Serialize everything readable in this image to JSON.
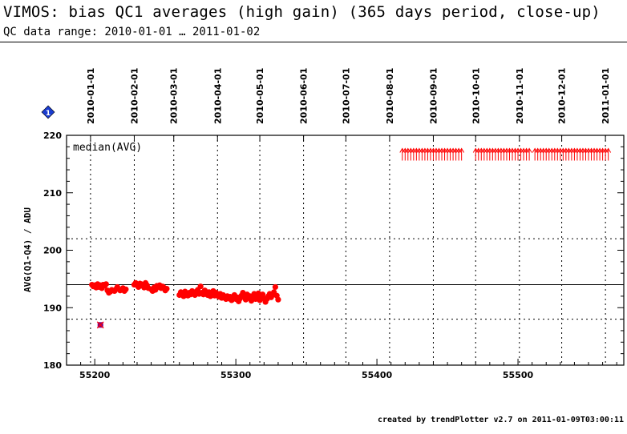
{
  "header": {
    "title": "VIMOS: bias QC1 averages (high gain) (365 days period, close-up)",
    "subtitle": "QC data range: 2010-01-01 … 2011-01-02"
  },
  "footer": {
    "credit": "created by trendPlotter v2.7 on 2011-01-09T03:00:11"
  },
  "colors": {
    "data": "#ff0000",
    "outlier_fill": "#800080",
    "outlier_edge": "#ff0000",
    "marker": "#1a3ccf",
    "grid": "#000000"
  },
  "chart_data": {
    "type": "scatter",
    "title": "",
    "annotation": "median(AVG)",
    "badge": "1",
    "xlabel": "",
    "ylabel": "AVG(Q1-Q4) / ADU",
    "xlim": [
      55180,
      55575
    ],
    "ylim": [
      180,
      220
    ],
    "x_ticks": [
      55200,
      55300,
      55400,
      55500
    ],
    "y_ticks": [
      180,
      190,
      200,
      210,
      220
    ],
    "top_axis_dates": [
      {
        "label": "2010-01-01",
        "mjd": 55197
      },
      {
        "label": "2010-02-01",
        "mjd": 55228
      },
      {
        "label": "2010-03-01",
        "mjd": 55256
      },
      {
        "label": "2010-04-01",
        "mjd": 55287
      },
      {
        "label": "2010-05-01",
        "mjd": 55317
      },
      {
        "label": "2010-06-01",
        "mjd": 55348
      },
      {
        "label": "2010-07-01",
        "mjd": 55378
      },
      {
        "label": "2010-08-01",
        "mjd": 55409
      },
      {
        "label": "2010-09-01",
        "mjd": 55440
      },
      {
        "label": "2010-10-01",
        "mjd": 55470
      },
      {
        "label": "2010-11-01",
        "mjd": 55501
      },
      {
        "label": "2010-12-01",
        "mjd": 55531
      },
      {
        "label": "2011-01-01",
        "mjd": 55562
      }
    ],
    "reference_lines": {
      "median": 194,
      "upper_limit": 202,
      "lower_limit": 188
    },
    "offscale_arrows": {
      "value": 217,
      "x": [
        55418,
        55420,
        55422,
        55424,
        55426,
        55428,
        55430,
        55432,
        55434,
        55436,
        55438,
        55440,
        55442,
        55444,
        55446,
        55448,
        55450,
        55452,
        55454,
        55456,
        55458,
        55460,
        55470,
        55472,
        55474,
        55476,
        55478,
        55480,
        55482,
        55484,
        55486,
        55488,
        55490,
        55492,
        55494,
        55496,
        55498,
        55500,
        55502,
        55504,
        55506,
        55508,
        55512,
        55514,
        55516,
        55518,
        55520,
        55522,
        55524,
        55526,
        55528,
        55530,
        55532,
        55534,
        55536,
        55538,
        55540,
        55542,
        55544,
        55546,
        55548,
        55550,
        55552,
        55554,
        55556,
        55558,
        55560,
        55562,
        55564
      ]
    },
    "outlier": {
      "x": 55204,
      "y": 187
    },
    "series": [
      {
        "points": [
          [
            55198,
            194.0
          ],
          [
            55199,
            193.7
          ],
          [
            55200,
            193.9
          ],
          [
            55201,
            193.5
          ],
          [
            55202,
            194.1
          ],
          [
            55203,
            193.6
          ],
          [
            55204,
            193.9
          ],
          [
            55205,
            193.4
          ],
          [
            55206,
            194.0
          ],
          [
            55207,
            193.8
          ],
          [
            55208,
            194.1
          ],
          [
            55209,
            193.0
          ],
          [
            55210,
            192.6
          ],
          [
            55211,
            192.8
          ],
          [
            55212,
            193.1
          ],
          [
            55214,
            192.9
          ],
          [
            55215,
            193.2
          ],
          [
            55216,
            193.6
          ],
          [
            55218,
            193.0
          ],
          [
            55220,
            193.4
          ],
          [
            55221,
            192.9
          ],
          [
            55222,
            193.2
          ],
          [
            55228,
            194.0
          ],
          [
            55229,
            194.3
          ],
          [
            55230,
            193.9
          ],
          [
            55231,
            193.6
          ],
          [
            55232,
            194.2
          ],
          [
            55233,
            194.1
          ],
          [
            55234,
            193.8
          ],
          [
            55235,
            193.5
          ],
          [
            55236,
            194.3
          ],
          [
            55237,
            193.9
          ],
          [
            55238,
            193.4
          ],
          [
            55240,
            193.2
          ],
          [
            55241,
            192.9
          ],
          [
            55242,
            193.5
          ],
          [
            55243,
            193.1
          ],
          [
            55244,
            193.8
          ],
          [
            55245,
            193.6
          ],
          [
            55246,
            193.9
          ],
          [
            55247,
            193.4
          ],
          [
            55248,
            193.7
          ],
          [
            55249,
            193.5
          ],
          [
            55250,
            193.0
          ],
          [
            55251,
            193.3
          ],
          [
            55260,
            192.2
          ],
          [
            55261,
            192.7
          ],
          [
            55262,
            192.5
          ],
          [
            55263,
            192.0
          ],
          [
            55264,
            192.8
          ],
          [
            55265,
            192.4
          ],
          [
            55266,
            192.1
          ],
          [
            55267,
            192.6
          ],
          [
            55268,
            192.3
          ],
          [
            55269,
            192.9
          ],
          [
            55270,
            192.5
          ],
          [
            55271,
            192.2
          ],
          [
            55272,
            192.8
          ],
          [
            55273,
            193.1
          ],
          [
            55274,
            192.4
          ],
          [
            55275,
            193.7
          ],
          [
            55276,
            192.6
          ],
          [
            55277,
            192.3
          ],
          [
            55278,
            193.0
          ],
          [
            55279,
            192.5
          ],
          [
            55280,
            192.2
          ],
          [
            55281,
            192.7
          ],
          [
            55282,
            192.0
          ],
          [
            55283,
            192.4
          ],
          [
            55284,
            192.9
          ],
          [
            55285,
            192.1
          ],
          [
            55286,
            192.6
          ],
          [
            55287,
            192.3
          ],
          [
            55288,
            191.9
          ],
          [
            55289,
            192.4
          ],
          [
            55290,
            191.7
          ],
          [
            55291,
            192.2
          ],
          [
            55292,
            191.8
          ],
          [
            55293,
            191.5
          ],
          [
            55294,
            192.0
          ],
          [
            55295,
            191.6
          ],
          [
            55296,
            191.9
          ],
          [
            55297,
            191.3
          ],
          [
            55298,
            191.7
          ],
          [
            55299,
            192.2
          ],
          [
            55300,
            191.5
          ],
          [
            55301,
            191.8
          ],
          [
            55302,
            191.1
          ],
          [
            55303,
            191.6
          ],
          [
            55304,
            192.1
          ],
          [
            55305,
            192.6
          ],
          [
            55306,
            191.9
          ],
          [
            55307,
            191.4
          ],
          [
            55308,
            192.3
          ],
          [
            55309,
            191.7
          ],
          [
            55310,
            192.0
          ],
          [
            55311,
            191.2
          ],
          [
            55312,
            191.8
          ],
          [
            55313,
            192.4
          ],
          [
            55314,
            191.5
          ],
          [
            55315,
            192.1
          ],
          [
            55316,
            192.5
          ],
          [
            55317,
            191.3
          ],
          [
            55318,
            191.9
          ],
          [
            55319,
            192.3
          ],
          [
            55320,
            191.6
          ],
          [
            55321,
            191.0
          ],
          [
            55322,
            191.5
          ],
          [
            55323,
            192.0
          ],
          [
            55324,
            192.4
          ],
          [
            55325,
            191.8
          ],
          [
            55326,
            192.2
          ],
          [
            55327,
            192.7
          ],
          [
            55328,
            193.6
          ],
          [
            55329,
            192.1
          ],
          [
            55330,
            191.4
          ]
        ]
      }
    ]
  }
}
